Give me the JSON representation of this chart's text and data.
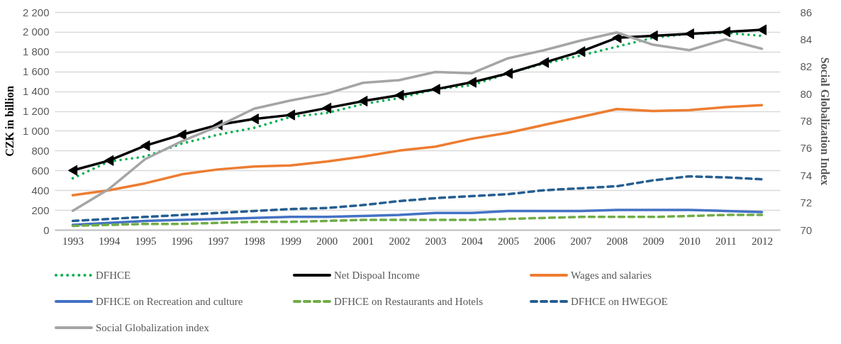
{
  "chart_data": {
    "type": "line",
    "ylabel": "CZK in billion",
    "y2label": "Social Globalization Index",
    "categories": [
      "1993",
      "1994",
      "1995",
      "1996",
      "1997",
      "1998",
      "1999",
      "2000",
      "2001",
      "2002",
      "2003",
      "2004",
      "2005",
      "2006",
      "2007",
      "2008",
      "2009",
      "2010",
      "2011",
      "2012"
    ],
    "ylim": [
      0,
      2200
    ],
    "yticks": [
      0,
      {
        "value": 200,
        "label": "200"
      },
      {
        "value": 400,
        "label": "400"
      },
      {
        "value": 600,
        "label": "600"
      },
      {
        "value": 800,
        "label": "800"
      },
      {
        "value": 1000,
        "label": "1 000"
      },
      {
        "value": 1200,
        "label": "1 200"
      },
      {
        "value": 1400,
        "label": "1 400"
      },
      {
        "value": 1600,
        "label": "1 600"
      },
      {
        "value": 1800,
        "label": "1 800"
      },
      {
        "value": 2000,
        "label": "2 000"
      },
      {
        "value": 2200,
        "label": "2 200"
      }
    ],
    "y2lim": [
      70,
      86
    ],
    "y2ticks": [
      70,
      72,
      74,
      76,
      78,
      80,
      82,
      84,
      86
    ],
    "grid": "y",
    "legend": "bottom",
    "series": [
      {
        "name": "DFHCE",
        "color": "#00b050",
        "line_style": "dotted",
        "values": [
          520,
          690,
          740,
          870,
          960,
          1030,
          1140,
          1180,
          1270,
          1330,
          1420,
          1460,
          1580,
          1680,
          1760,
          1850,
          1940,
          1980,
          1990,
          1960
        ]
      },
      {
        "name": "Net Dispoal Income",
        "color": "#000000",
        "marker": "triangle",
        "line_style": "solid",
        "values": [
          600,
          700,
          850,
          960,
          1060,
          1120,
          1160,
          1230,
          1300,
          1360,
          1420,
          1490,
          1580,
          1690,
          1800,
          1940,
          1960,
          1980,
          2000,
          2020
        ]
      },
      {
        "name": "Wages and salaries",
        "color": "#ed7d31",
        "line_style": "solid",
        "values": [
          350,
          400,
          470,
          560,
          610,
          640,
          650,
          690,
          740,
          800,
          840,
          920,
          980,
          1060,
          1140,
          1220,
          1200,
          1210,
          1240,
          1260
        ]
      },
      {
        "name": "DFHCE on  Recreation and culture",
        "color": "#4472c4",
        "line_style": "solid",
        "values": [
          50,
          70,
          90,
          100,
          110,
          120,
          130,
          130,
          140,
          150,
          170,
          170,
          190,
          190,
          190,
          200,
          200,
          200,
          190,
          180
        ]
      },
      {
        "name": "DFHCE on Restaurants and Hotels",
        "color": "#70ad47",
        "line_style": "dashed",
        "values": [
          40,
          50,
          60,
          60,
          70,
          80,
          80,
          90,
          100,
          100,
          100,
          100,
          110,
          120,
          130,
          130,
          130,
          140,
          150,
          150
        ]
      },
      {
        "name": "DFHCE on HWEGOE",
        "color": "#255e91",
        "line_style": "dashed",
        "values": [
          90,
          110,
          130,
          150,
          170,
          190,
          210,
          220,
          250,
          290,
          320,
          340,
          360,
          400,
          420,
          440,
          500,
          540,
          530,
          510
        ]
      },
      {
        "name": "Social Globalization index",
        "color": "#a5a5a5",
        "axis": "y2",
        "line_style": "solid",
        "values": [
          71.4,
          73.0,
          75.2,
          76.5,
          77.6,
          78.9,
          79.5,
          80.0,
          80.8,
          81.0,
          81.6,
          81.5,
          82.6,
          83.2,
          83.9,
          84.5,
          83.6,
          83.2,
          84.0,
          83.3
        ]
      }
    ]
  }
}
